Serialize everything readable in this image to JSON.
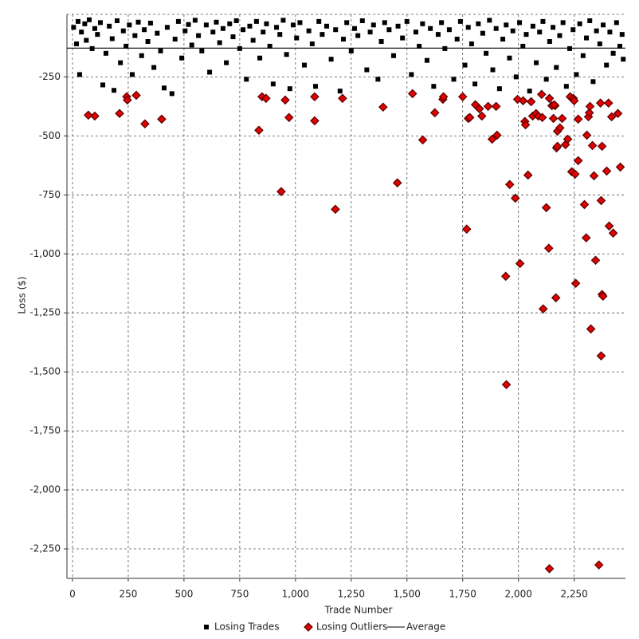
{
  "chart_data": {
    "type": "scatter",
    "x_label": "Trade Number",
    "y_label": "Loss ($)",
    "xlim": [
      -25,
      2480
    ],
    "ylim": [
      -2375,
      15
    ],
    "grid": true,
    "xticks": [
      0,
      250,
      500,
      750,
      {
        "value": 1000,
        "label": "1,000"
      },
      {
        "value": 1250,
        "label": "1,250"
      },
      {
        "value": 1500,
        "label": "1,500"
      },
      {
        "value": 1750,
        "label": "1,750"
      },
      {
        "value": 2000,
        "label": "2,000"
      },
      {
        "value": 2250,
        "label": "2,250"
      }
    ],
    "yticks": [
      -250,
      -500,
      -750,
      {
        "value": -1000,
        "label": "-1,000"
      },
      {
        "value": -1250,
        "label": "-1,250"
      },
      {
        "value": -1500,
        "label": "-1,500"
      },
      {
        "value": -1750,
        "label": "-1,750"
      },
      {
        "value": -2000,
        "label": "-2,000"
      },
      {
        "value": -2250,
        "label": "-2,250"
      }
    ],
    "legend": "bottom",
    "series": [
      {
        "name": "Losing Trades",
        "color": "#000000",
        "marker": "square",
        "x": [
          5,
          18,
          25,
          32,
          40,
          55,
          62,
          75,
          88,
          100,
          112,
          125,
          136,
          150,
          165,
          178,
          186,
          200,
          215,
          228,
          240,
          255,
          268,
          280,
          295,
          310,
          322,
          338,
          350,
          365,
          380,
          395,
          411,
          425,
          446,
          460,
          475,
          490,
          505,
          520,
          535,
          550,
          565,
          580,
          600,
          615,
          630,
          645,
          660,
          675,
          690,
          705,
          720,
          735,
          750,
          765,
          780,
          795,
          810,
          825,
          840,
          855,
          870,
          885,
          900,
          915,
          930,
          945,
          960,
          975,
          990,
          1005,
          1020,
          1040,
          1060,
          1075,
          1090,
          1105,
          1120,
          1140,
          1160,
          1180,
          1200,
          1215,
          1230,
          1250,
          1265,
          1280,
          1300,
          1320,
          1335,
          1350,
          1370,
          1385,
          1400,
          1420,
          1440,
          1460,
          1480,
          1500,
          1520,
          1540,
          1555,
          1570,
          1590,
          1605,
          1620,
          1640,
          1655,
          1670,
          1690,
          1710,
          1725,
          1740,
          1760,
          1775,
          1790,
          1805,
          1820,
          1840,
          1855,
          1870,
          1885,
          1900,
          1915,
          1930,
          1945,
          1960,
          1975,
          1990,
          2005,
          2020,
          2035,
          2050,
          2065,
          2080,
          2095,
          2110,
          2125,
          2140,
          2155,
          2170,
          2185,
          2200,
          2215,
          2230,
          2245,
          2260,
          2275,
          2290,
          2305,
          2320,
          2335,
          2350,
          2365,
          2380,
          2395,
          2410,
          2425,
          2440,
          2455,
          2465,
          2470
        ],
        "values": [
          -40,
          -110,
          -15,
          -240,
          -60,
          -25,
          -95,
          -8,
          -130,
          -45,
          -70,
          -20,
          -284,
          -150,
          -35,
          -88,
          -307,
          -12,
          -190,
          -55,
          -120,
          -30,
          -240,
          -75,
          -18,
          -160,
          -50,
          -100,
          -22,
          -210,
          -65,
          -140,
          -297,
          -40,
          -321,
          -90,
          -15,
          -170,
          -55,
          -28,
          -115,
          -10,
          -75,
          -140,
          -30,
          -230,
          -60,
          -18,
          -105,
          -45,
          -190,
          -25,
          -80,
          -12,
          -130,
          -50,
          -260,
          -35,
          -95,
          -15,
          -170,
          -60,
          -25,
          -120,
          -280,
          -40,
          -70,
          -10,
          -155,
          -300,
          -30,
          -85,
          -20,
          -200,
          -55,
          -110,
          -290,
          -15,
          -70,
          -35,
          -175,
          -50,
          -310,
          -90,
          -20,
          -140,
          -45,
          -75,
          -12,
          -220,
          -60,
          -30,
          -260,
          -100,
          -20,
          -50,
          -160,
          -35,
          -85,
          -15,
          -240,
          -60,
          -120,
          -25,
          -180,
          -45,
          -290,
          -70,
          -20,
          -130,
          -50,
          -260,
          -90,
          -15,
          -200,
          -40,
          -110,
          -280,
          -25,
          -65,
          -150,
          -10,
          -220,
          -45,
          -300,
          -90,
          -30,
          -170,
          -55,
          -250,
          -20,
          -120,
          -70,
          -310,
          -35,
          -190,
          -60,
          -15,
          -260,
          -100,
          -40,
          -210,
          -75,
          -20,
          -290,
          -130,
          -50,
          -240,
          -25,
          -160,
          -85,
          -12,
          -270,
          -55,
          -110,
          -30,
          -200,
          -60,
          -150,
          -20,
          -120,
          -70,
          -175
        ]
      },
      {
        "name": "Losing Outliers",
        "color": "#e00000",
        "marker": "diamond",
        "x": [
          71,
          100,
          211,
          243,
          246,
          286,
          325,
          400,
          836,
          850,
          868,
          936,
          954,
          971,
          1086,
          1086,
          1179,
          1211,
          1393,
          1457,
          1525,
          1571,
          1625,
          1661,
          1664,
          1750,
          1768,
          1775,
          1782,
          1807,
          1825,
          1836,
          1864,
          1882,
          1900,
          1904,
          1943,
          1946,
          1961,
          1986,
          1996,
          2007,
          2021,
          2029,
          2032,
          2043,
          2057,
          2064,
          2079,
          2089,
          2104,
          2107,
          2111,
          2125,
          2136,
          2139,
          2139,
          2150,
          2157,
          2164,
          2161,
          2171,
          2168,
          2175,
          2175,
          2186,
          2196,
          2211,
          2221,
          2232,
          2239,
          2246,
          2250,
          2254,
          2257,
          2268,
          2268,
          2296,
          2304,
          2307,
          2314,
          2318,
          2321,
          2325,
          2332,
          2339,
          2346,
          2361,
          2368,
          2371,
          2371,
          2375,
          2379,
          2375,
          2396,
          2404,
          2407,
          2418,
          2425,
          2446,
          2457
        ],
        "values": [
          -412,
          -416,
          -405,
          -334,
          -348,
          -328,
          -449,
          -429,
          -476,
          -334,
          -341,
          -736,
          -348,
          -422,
          -334,
          -436,
          -811,
          -341,
          -378,
          -699,
          -321,
          -517,
          -402,
          -345,
          -334,
          -334,
          -895,
          -426,
          -422,
          -368,
          -385,
          -416,
          -375,
          -514,
          -375,
          -497,
          -1095,
          -1554,
          -706,
          -764,
          -345,
          -1041,
          -351,
          -439,
          -453,
          -666,
          -355,
          -416,
          -405,
          -416,
          -324,
          -422,
          -1233,
          -804,
          -976,
          -2334,
          -341,
          -372,
          -426,
          -372,
          -368,
          -551,
          -1186,
          -544,
          -480,
          -466,
          -426,
          -537,
          -514,
          -334,
          -652,
          -341,
          -351,
          -662,
          -1125,
          -429,
          -605,
          -791,
          -932,
          -497,
          -419,
          -402,
          -375,
          -1318,
          -541,
          -669,
          -1027,
          -2318,
          -361,
          -1432,
          -774,
          -1172,
          -1179,
          -544,
          -649,
          -361,
          -882,
          -419,
          -912,
          -405,
          -632
        ]
      },
      {
        "name": "Average",
        "color": "#000000",
        "marker": "line",
        "value": -128
      }
    ]
  }
}
